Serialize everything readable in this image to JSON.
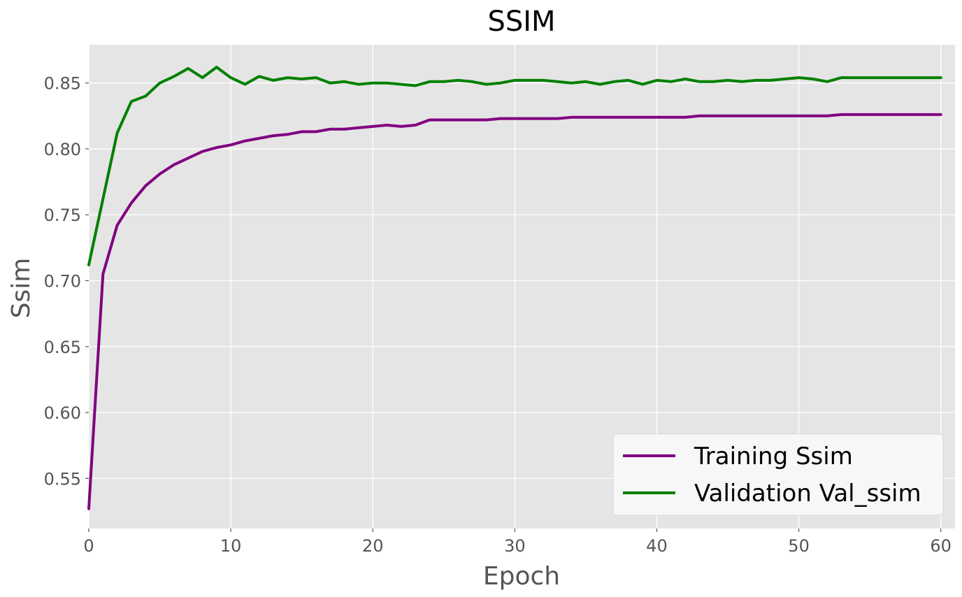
{
  "chart_data": {
    "type": "line",
    "title": "SSIM",
    "xlabel": "Epoch",
    "ylabel": "Ssim",
    "xlim": [
      0,
      61
    ],
    "ylim": [
      0.512,
      0.879
    ],
    "x_ticks": [
      0,
      10,
      20,
      30,
      40,
      50,
      60
    ],
    "y_ticks": [
      0.55,
      0.6,
      0.65,
      0.7,
      0.75,
      0.8,
      0.85
    ],
    "y_tick_labels": [
      "0.55",
      "0.60",
      "0.65",
      "0.70",
      "0.75",
      "0.80",
      "0.85"
    ],
    "grid": true,
    "legend_position": "lower-right",
    "background": "#e5e5e5",
    "series": [
      {
        "name": "Training Ssim",
        "color": "#800080",
        "x": [
          0,
          1,
          2,
          3,
          4,
          5,
          6,
          7,
          8,
          9,
          10,
          11,
          12,
          13,
          14,
          15,
          16,
          17,
          18,
          19,
          20,
          21,
          22,
          23,
          24,
          25,
          26,
          27,
          28,
          29,
          30,
          31,
          32,
          33,
          34,
          35,
          36,
          37,
          38,
          39,
          40,
          41,
          42,
          43,
          44,
          45,
          46,
          47,
          48,
          49,
          50,
          51,
          52,
          53,
          54,
          55,
          56,
          57,
          58,
          59,
          60
        ],
        "values": [
          0.527,
          0.705,
          0.742,
          0.759,
          0.772,
          0.781,
          0.788,
          0.793,
          0.798,
          0.801,
          0.803,
          0.806,
          0.808,
          0.81,
          0.811,
          0.813,
          0.813,
          0.815,
          0.815,
          0.816,
          0.817,
          0.818,
          0.817,
          0.818,
          0.822,
          0.822,
          0.822,
          0.822,
          0.822,
          0.823,
          0.823,
          0.823,
          0.823,
          0.823,
          0.824,
          0.824,
          0.824,
          0.824,
          0.824,
          0.824,
          0.824,
          0.824,
          0.824,
          0.825,
          0.825,
          0.825,
          0.825,
          0.825,
          0.825,
          0.825,
          0.825,
          0.825,
          0.825,
          0.826,
          0.826,
          0.826,
          0.826,
          0.826,
          0.826,
          0.826,
          0.826
        ]
      },
      {
        "name": "Validation Val_ssim",
        "color": "#008000",
        "x": [
          0,
          1,
          2,
          3,
          4,
          5,
          6,
          7,
          8,
          9,
          10,
          11,
          12,
          13,
          14,
          15,
          16,
          17,
          18,
          19,
          20,
          21,
          22,
          23,
          24,
          25,
          26,
          27,
          28,
          29,
          30,
          31,
          32,
          33,
          34,
          35,
          36,
          37,
          38,
          39,
          40,
          41,
          42,
          43,
          44,
          45,
          46,
          47,
          48,
          49,
          50,
          51,
          52,
          53,
          54,
          55,
          56,
          57,
          58,
          59,
          60
        ],
        "values": [
          0.712,
          0.762,
          0.812,
          0.836,
          0.84,
          0.85,
          0.855,
          0.861,
          0.854,
          0.862,
          0.854,
          0.849,
          0.855,
          0.852,
          0.854,
          0.853,
          0.854,
          0.85,
          0.851,
          0.849,
          0.85,
          0.85,
          0.849,
          0.848,
          0.851,
          0.851,
          0.852,
          0.851,
          0.849,
          0.85,
          0.852,
          0.852,
          0.852,
          0.851,
          0.85,
          0.851,
          0.849,
          0.851,
          0.852,
          0.849,
          0.852,
          0.851,
          0.853,
          0.851,
          0.851,
          0.852,
          0.851,
          0.852,
          0.852,
          0.853,
          0.854,
          0.853,
          0.851,
          0.854,
          0.854,
          0.854,
          0.854,
          0.854,
          0.854,
          0.854,
          0.854
        ]
      }
    ]
  }
}
